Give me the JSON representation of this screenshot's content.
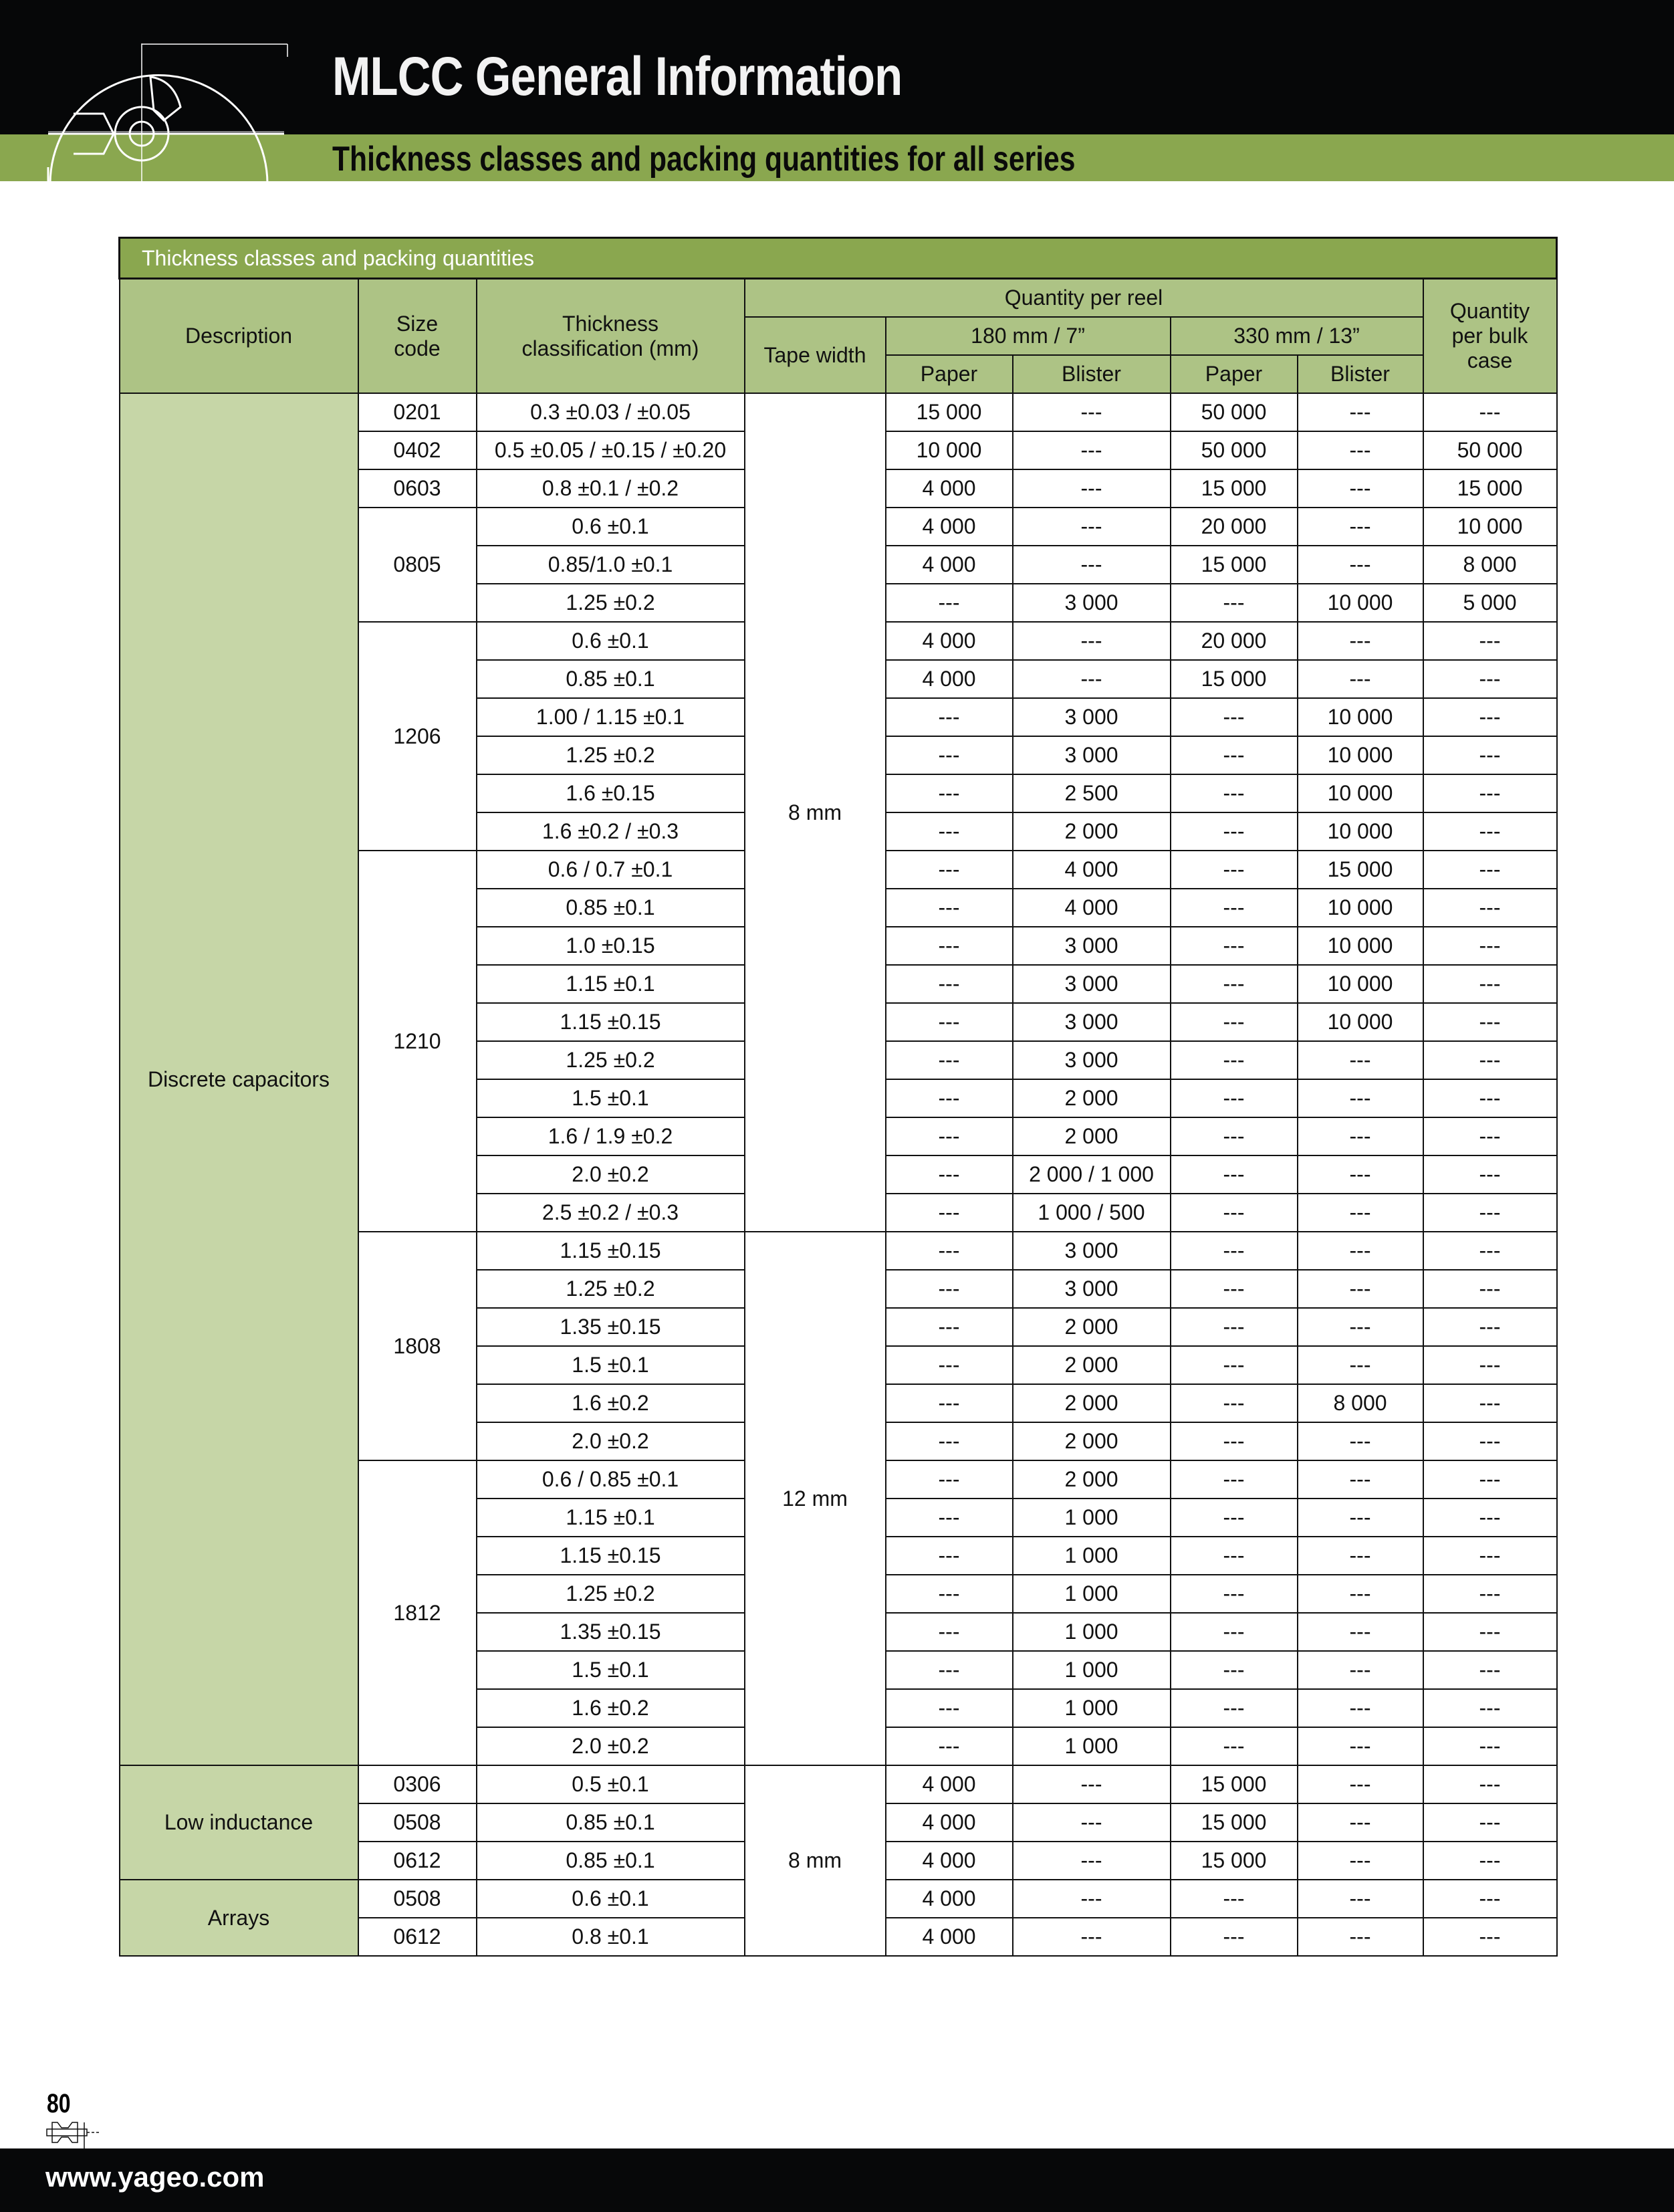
{
  "header": {
    "title": "MLCC General Information",
    "subtitle": "Thickness classes and packing quantities for all series"
  },
  "colors": {
    "header_black": "#060708",
    "brand_green": "#8aa74f",
    "header_cell_green": "#adc385",
    "description_green": "#c6d6a7"
  },
  "table": {
    "caption": "Thickness classes and packing quantities",
    "headers": {
      "description": "Description",
      "size_code": "Size code",
      "thickness": "Thickness classification (mm)",
      "quantity_per_reel": "Quantity per reel",
      "tape_width": "Tape width",
      "reel_180": "180 mm / 7”",
      "reel_330": "330 mm / 13”",
      "paper": "Paper",
      "blister": "Blister",
      "bulk": "Quantity per bulk case"
    },
    "tape_widths": [
      {
        "label": "8 mm",
        "rows": 22
      },
      {
        "label": "12 mm",
        "rows": 14
      },
      {
        "label": "8 mm",
        "rows": 5
      }
    ],
    "groups": [
      {
        "description": "Discrete capacitors",
        "sizes": [
          {
            "code": "0201",
            "rows": [
              [
                "0.3 ±0.03 / ±0.05",
                "15 000",
                "---",
                "50 000",
                "---",
                "---"
              ]
            ]
          },
          {
            "code": "0402",
            "rows": [
              [
                "0.5 ±0.05 / ±0.15 / ±0.20",
                "10 000",
                "---",
                "50 000",
                "---",
                "50 000"
              ]
            ]
          },
          {
            "code": "0603",
            "rows": [
              [
                "0.8 ±0.1 / ±0.2",
                "4 000",
                "---",
                "15 000",
                "---",
                "15 000"
              ]
            ]
          },
          {
            "code": "0805",
            "rows": [
              [
                "0.6 ±0.1",
                "4 000",
                "---",
                "20 000",
                "---",
                "10 000"
              ],
              [
                "0.85/1.0 ±0.1",
                "4 000",
                "---",
                "15 000",
                "---",
                "8 000"
              ],
              [
                "1.25 ±0.2",
                "---",
                "3 000",
                "---",
                "10 000",
                "5 000"
              ]
            ]
          },
          {
            "code": "1206",
            "rows": [
              [
                "0.6 ±0.1",
                "4 000",
                "---",
                "20 000",
                "---",
                "---"
              ],
              [
                "0.85 ±0.1",
                "4 000",
                "---",
                "15 000",
                "---",
                "---"
              ],
              [
                "1.00 / 1.15 ±0.1",
                "---",
                "3 000",
                "---",
                "10 000",
                "---"
              ],
              [
                "1.25 ±0.2",
                "---",
                "3 000",
                "---",
                "10 000",
                "---"
              ],
              [
                "1.6 ±0.15",
                "---",
                "2 500",
                "---",
                "10 000",
                "---"
              ],
              [
                "1.6 ±0.2 / ±0.3",
                "---",
                "2 000",
                "---",
                "10 000",
                "---"
              ]
            ]
          },
          {
            "code": "1210",
            "rows": [
              [
                "0.6 / 0.7 ±0.1",
                "---",
                "4 000",
                "---",
                "15 000",
                "---"
              ],
              [
                "0.85 ±0.1",
                "---",
                "4 000",
                "---",
                "10 000",
                "---"
              ],
              [
                "1.0 ±0.15",
                "---",
                "3 000",
                "---",
                "10 000",
                "---"
              ],
              [
                "1.15 ±0.1",
                "---",
                "3 000",
                "---",
                "10 000",
                "---"
              ],
              [
                "1.15 ±0.15",
                "---",
                "3 000",
                "---",
                "10 000",
                "---"
              ],
              [
                "1.25 ±0.2",
                "---",
                "3 000",
                "---",
                "---",
                "---"
              ],
              [
                "1.5 ±0.1",
                "---",
                "2 000",
                "---",
                "---",
                "---"
              ],
              [
                "1.6 / 1.9 ±0.2",
                "---",
                "2 000",
                "---",
                "---",
                "---"
              ],
              [
                "2.0 ±0.2",
                "---",
                "2 000 / 1 000",
                "---",
                "---",
                "---"
              ],
              [
                "2.5 ±0.2 / ±0.3",
                "---",
                "1 000 / 500",
                "---",
                "---",
                "---"
              ]
            ]
          },
          {
            "code": "1808",
            "rows": [
              [
                "1.15 ±0.15",
                "---",
                "3 000",
                "---",
                "---",
                "---"
              ],
              [
                "1.25 ±0.2",
                "---",
                "3 000",
                "---",
                "---",
                "---"
              ],
              [
                "1.35 ±0.15",
                "---",
                "2 000",
                "---",
                "---",
                "---"
              ],
              [
                "1.5 ±0.1",
                "---",
                "2 000",
                "---",
                "---",
                "---"
              ],
              [
                "1.6 ±0.2",
                "---",
                "2 000",
                "---",
                "8 000",
                "---"
              ],
              [
                "2.0 ±0.2",
                "---",
                "2 000",
                "---",
                "---",
                "---"
              ]
            ]
          },
          {
            "code": "1812",
            "rows": [
              [
                "0.6 / 0.85 ±0.1",
                "---",
                "2 000",
                "---",
                "---",
                "---"
              ],
              [
                "1.15 ±0.1",
                "---",
                "1 000",
                "---",
                "---",
                "---"
              ],
              [
                "1.15 ±0.15",
                "---",
                "1 000",
                "---",
                "---",
                "---"
              ],
              [
                "1.25 ±0.2",
                "---",
                "1 000",
                "---",
                "---",
                "---"
              ],
              [
                "1.35 ±0.15",
                "---",
                "1 000",
                "---",
                "---",
                "---"
              ],
              [
                "1.5 ±0.1",
                "---",
                "1 000",
                "---",
                "---",
                "---"
              ],
              [
                "1.6 ±0.2",
                "---",
                "1 000",
                "---",
                "---",
                "---"
              ],
              [
                "2.0 ±0.2",
                "---",
                "1 000",
                "---",
                "---",
                "---"
              ]
            ]
          }
        ]
      },
      {
        "description": "Low inductance",
        "sizes": [
          {
            "code": "0306",
            "rows": [
              [
                "0.5 ±0.1",
                "4 000",
                "---",
                "15 000",
                "---",
                "---"
              ]
            ]
          },
          {
            "code": "0508",
            "rows": [
              [
                "0.85 ±0.1",
                "4 000",
                "---",
                "15 000",
                "---",
                "---"
              ]
            ]
          },
          {
            "code": "0612",
            "rows": [
              [
                "0.85 ±0.1",
                "4 000",
                "---",
                "15 000",
                "---",
                "---"
              ]
            ]
          }
        ]
      },
      {
        "description": "Arrays",
        "sizes": [
          {
            "code": "0508",
            "rows": [
              [
                "0.6 ±0.1",
                "4 000",
                "---",
                "---",
                "---",
                "---"
              ]
            ]
          },
          {
            "code": "0612",
            "rows": [
              [
                "0.8 ±0.1",
                "4 000",
                "---",
                "---",
                "---",
                "---"
              ]
            ]
          }
        ]
      }
    ]
  },
  "footer": {
    "page_number": "80",
    "url": "www.yageo.com"
  }
}
